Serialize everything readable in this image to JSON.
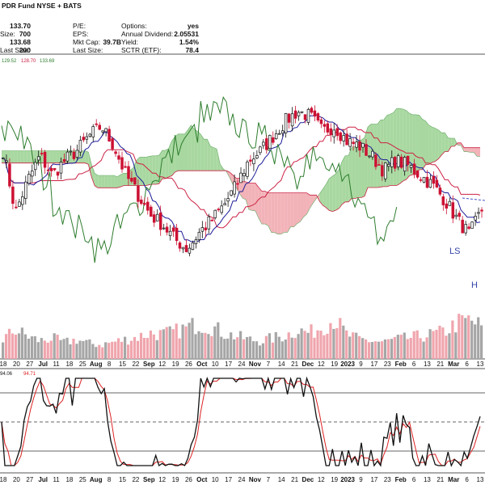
{
  "header": {
    "title_fragment": "PDR Fund NYSE + BATS",
    "left_values": [
      "133.70",
      "700",
      "133.68",
      "200"
    ],
    "left_labels": [
      "Size:",
      "Bid Size:",
      "Last Size:"
    ],
    "mid_labels": [
      "P/E:",
      "EPS:",
      "Mkt Cap:",
      "Last Size:"
    ],
    "mid_values": [
      "",
      "",
      "39.7B",
      ""
    ],
    "right_labels": [
      "Options:",
      "Annual Dividend:",
      "Yield:",
      "SCTR (ETF):"
    ],
    "right_values": [
      "yes",
      "2.05531",
      "1.54%",
      "78.4"
    ]
  },
  "ichimoku_legend": [
    "129.52",
    "128.70",
    "133.69"
  ],
  "stoch_legend": [
    "94.06",
    "94.71"
  ],
  "price_axis_labels": [
    "LS",
    "H"
  ],
  "x_axis": {
    "labels": [
      "18",
      "20",
      "27",
      "Jul",
      "11",
      "18",
      "25",
      "Aug",
      "8",
      "15",
      "22",
      "Sep",
      "12",
      "19",
      "26",
      "Oct",
      "10",
      "17",
      "24",
      "Nov",
      "7",
      "14",
      "21",
      "Dec",
      "12",
      "19",
      "2023",
      "9",
      "17",
      "23",
      "Feb",
      "6",
      "13",
      "21",
      "Mar",
      "6",
      "13"
    ],
    "bold": [
      "Jul",
      "Aug",
      "Sep",
      "Oct",
      "Nov",
      "Dec",
      "2023",
      "Feb",
      "Mar"
    ]
  },
  "colors": {
    "up_candle": "#111111",
    "down_candle": "#cc1133",
    "kijun": "#cc2244",
    "tenkan": "#1c1c99",
    "chikou": "#2e7d2e",
    "cloud_bull": "#a8d8a0",
    "cloud_bear": "#f2b3b8",
    "volume_gray": "#a6a6a6",
    "volume_pink": "#f0a5ad",
    "stoch_k": "#111111",
    "stoch_d": "#dd2222"
  },
  "chart_data": [
    {
      "type": "candlestick",
      "panel": "price with Ichimoku cloud",
      "x": [
        "Jun 13",
        "Jun 20",
        "Jun 27",
        "Jul 5",
        "Jul 11",
        "Jul 18",
        "Jul 25",
        "Aug 1",
        "Aug 8",
        "Aug 15",
        "Aug 22",
        "Aug 29",
        "Sep 6",
        "Sep 12",
        "Sep 19",
        "Sep 26",
        "Oct 3",
        "Oct 10",
        "Oct 17",
        "Oct 24",
        "Oct 31",
        "Nov 7",
        "Nov 14",
        "Nov 21",
        "Nov 28",
        "Dec 5",
        "Dec 12",
        "Dec 19",
        "Dec 27",
        "Jan 3",
        "Jan 9",
        "Jan 17",
        "Jan 23",
        "Jan 30",
        "Feb 6",
        "Feb 13",
        "Feb 21",
        "Feb 27",
        "Mar 6",
        "Mar 13"
      ],
      "close": [
        0.7,
        0.45,
        0.58,
        0.68,
        0.6,
        0.66,
        0.7,
        0.76,
        0.8,
        0.72,
        0.6,
        0.52,
        0.44,
        0.4,
        0.34,
        0.3,
        0.37,
        0.42,
        0.48,
        0.56,
        0.66,
        0.7,
        0.76,
        0.82,
        0.86,
        0.84,
        0.78,
        0.8,
        0.74,
        0.72,
        0.68,
        0.62,
        0.66,
        0.64,
        0.6,
        0.56,
        0.5,
        0.42,
        0.36,
        0.46
      ],
      "series": [
        {
          "name": "129.52",
          "role": "conversion"
        },
        {
          "name": "128.70",
          "role": "base"
        },
        {
          "name": "133.69",
          "role": "lagging"
        }
      ]
    },
    {
      "type": "bar",
      "panel": "volume",
      "values": [
        0.3,
        0.45,
        0.35,
        0.28,
        0.32,
        0.25,
        0.3,
        0.24,
        0.22,
        0.26,
        0.3,
        0.34,
        0.4,
        0.38,
        0.42,
        0.48,
        0.55,
        0.5,
        0.4,
        0.35,
        0.3,
        0.28,
        0.32,
        0.36,
        0.45,
        0.4,
        0.5,
        0.62,
        0.38,
        0.3,
        0.28,
        0.26,
        0.3,
        0.32,
        0.35,
        0.38,
        0.42,
        0.55,
        0.6,
        0.5
      ]
    },
    {
      "type": "line",
      "panel": "stochastic",
      "series": [
        {
          "name": "94.06"
        },
        {
          "name": "94.71"
        }
      ],
      "reference_lines": [
        80,
        50,
        20
      ],
      "ylim": [
        0,
        100
      ]
    }
  ]
}
